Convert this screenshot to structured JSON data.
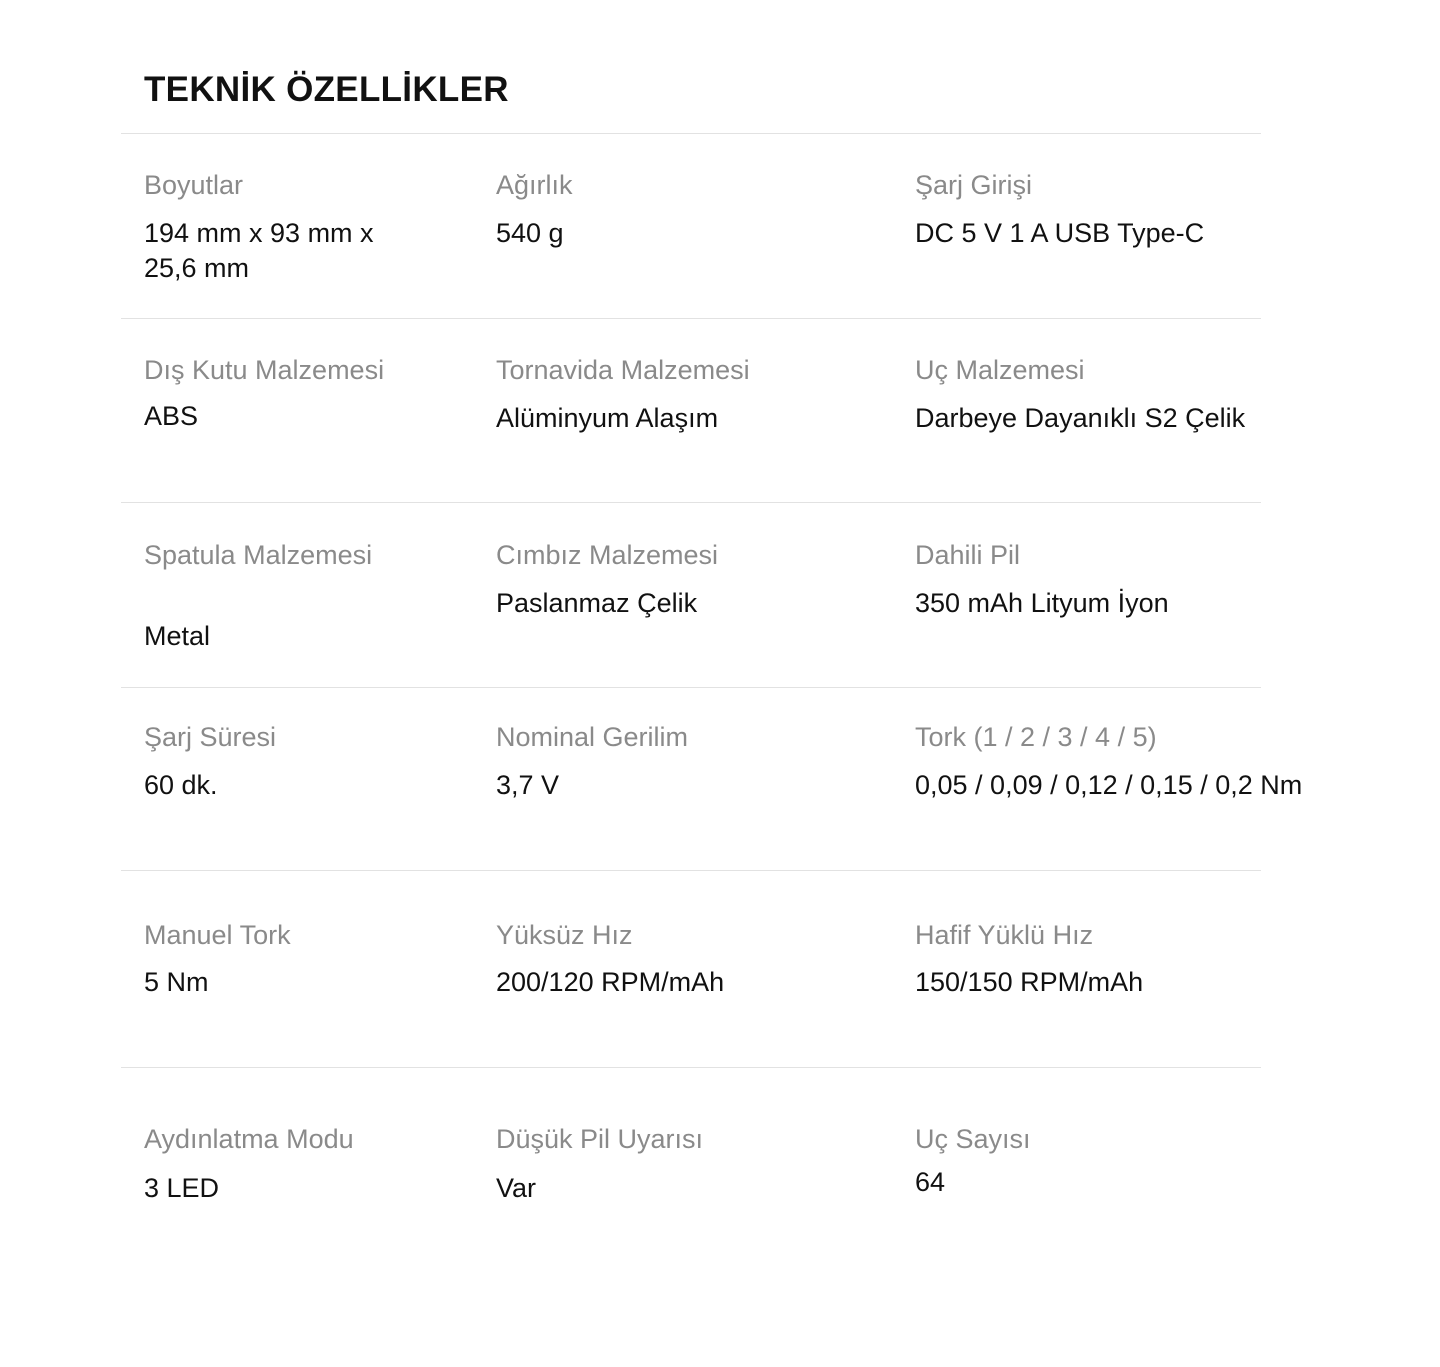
{
  "title": "TEKNİK ÖZELLİKLER",
  "specs": [
    {
      "label": "Boyutlar",
      "value": "194 mm x 93 mm x 25,6 mm"
    },
    {
      "label": "Ağırlık",
      "value": "540 g"
    },
    {
      "label": "Şarj Girişi",
      "value": "DC 5 V 1 A USB Type-C"
    },
    {
      "label": "Dış Kutu Malzemesi",
      "value": "ABS"
    },
    {
      "label": "Tornavida Malzemesi",
      "value": "Alüminyum Alaşım"
    },
    {
      "label": "Uç Malzemesi",
      "value": "Darbeye Dayanıklı S2 Çelik"
    },
    {
      "label": "Spatula Malzemesi",
      "value": "Metal"
    },
    {
      "label": "Cımbız Malzemesi",
      "value": "Paslanmaz Çelik"
    },
    {
      "label": "Dahili Pil",
      "value": "350 mAh Lityum İyon"
    },
    {
      "label": "Şarj Süresi",
      "value": "60 dk."
    },
    {
      "label": "Nominal Gerilim",
      "value": "3,7 V"
    },
    {
      "label": "Tork (1 / 2 / 3 / 4 / 5)",
      "value": "0,05 / 0,09 / 0,12 / 0,15 / 0,2 Nm"
    },
    {
      "label": "Manuel Tork",
      "value": "5 Nm"
    },
    {
      "label": "Yüksüz Hız",
      "value": "200/120 RPM/mAh"
    },
    {
      "label": "Hafif Yüklü Hız",
      "value": "150/150 RPM/mAh"
    },
    {
      "label": "Aydınlatma Modu",
      "value": "3 LED"
    },
    {
      "label": "Düşük Pil Uyarısı",
      "value": "Var"
    },
    {
      "label": "Uç Sayısı",
      "value": "64"
    }
  ]
}
